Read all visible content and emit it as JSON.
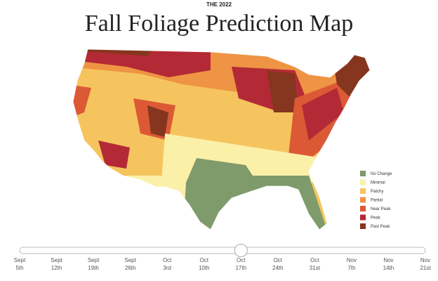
{
  "header": {
    "kicker": "THE 2022",
    "title": "Fall Foliage Prediction Map"
  },
  "legend": [
    {
      "label": "No Change",
      "color": "#7f9a6b"
    },
    {
      "label": "Minimal",
      "color": "#fbf0a8"
    },
    {
      "label": "Patchy",
      "color": "#f6c45e"
    },
    {
      "label": "Partial",
      "color": "#ee9444"
    },
    {
      "label": "Near Peak",
      "color": "#dc5936"
    },
    {
      "label": "Peak",
      "color": "#b32a36"
    },
    {
      "label": "Past Peak",
      "color": "#86351f"
    }
  ],
  "slider": {
    "selected_index": 6,
    "dates": [
      {
        "month": "Sept",
        "day": "5th"
      },
      {
        "month": "Sept",
        "day": "12th"
      },
      {
        "month": "Sept",
        "day": "19th"
      },
      {
        "month": "Sept",
        "day": "26th"
      },
      {
        "month": "Oct",
        "day": "3rd"
      },
      {
        "month": "Oct",
        "day": "10th"
      },
      {
        "month": "Oct",
        "day": "17th"
      },
      {
        "month": "Oct",
        "day": "24th"
      },
      {
        "month": "Oct",
        "day": "31st"
      },
      {
        "month": "Nov",
        "day": "7th"
      },
      {
        "month": "Nov",
        "day": "14th"
      },
      {
        "month": "Nov",
        "day": "21st"
      }
    ]
  }
}
